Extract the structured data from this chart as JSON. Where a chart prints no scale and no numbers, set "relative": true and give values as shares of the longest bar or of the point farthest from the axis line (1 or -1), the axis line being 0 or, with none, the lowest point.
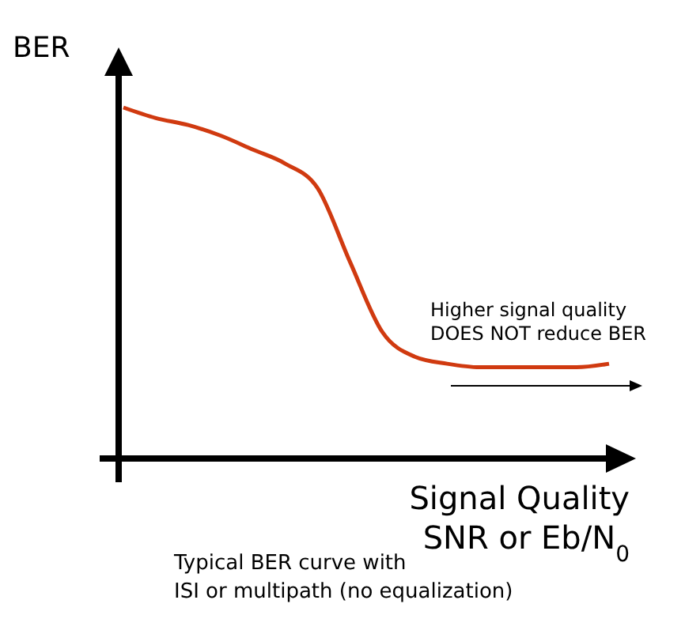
{
  "chart_data": {
    "type": "line",
    "relative": true,
    "ylabel": "BER",
    "xlabel": "Signal Quality\nSNR or Eb/N$_{0}$",
    "categories": [
      null,
      null,
      null,
      null,
      null,
      null,
      null,
      null,
      null,
      null,
      null,
      null,
      null,
      null,
      null,
      null
    ],
    "series": [
      {
        "color": "#d03a10",
        "values": [
          1,
          0.97,
          0.95,
          0.92,
          0.88,
          0.84,
          0.77,
          0.56,
          0.36,
          0.29,
          0.27,
          0.26,
          0.26,
          0.26,
          0.26,
          0.27
        ]
      }
    ],
    "annotations": [
      "Higher signal quality\nDOES NOT reduce BER",
      "Typical BER curve with\nISI or multipath (no equalization)"
    ],
    "marker": "none",
    "line_style": "solid"
  }
}
